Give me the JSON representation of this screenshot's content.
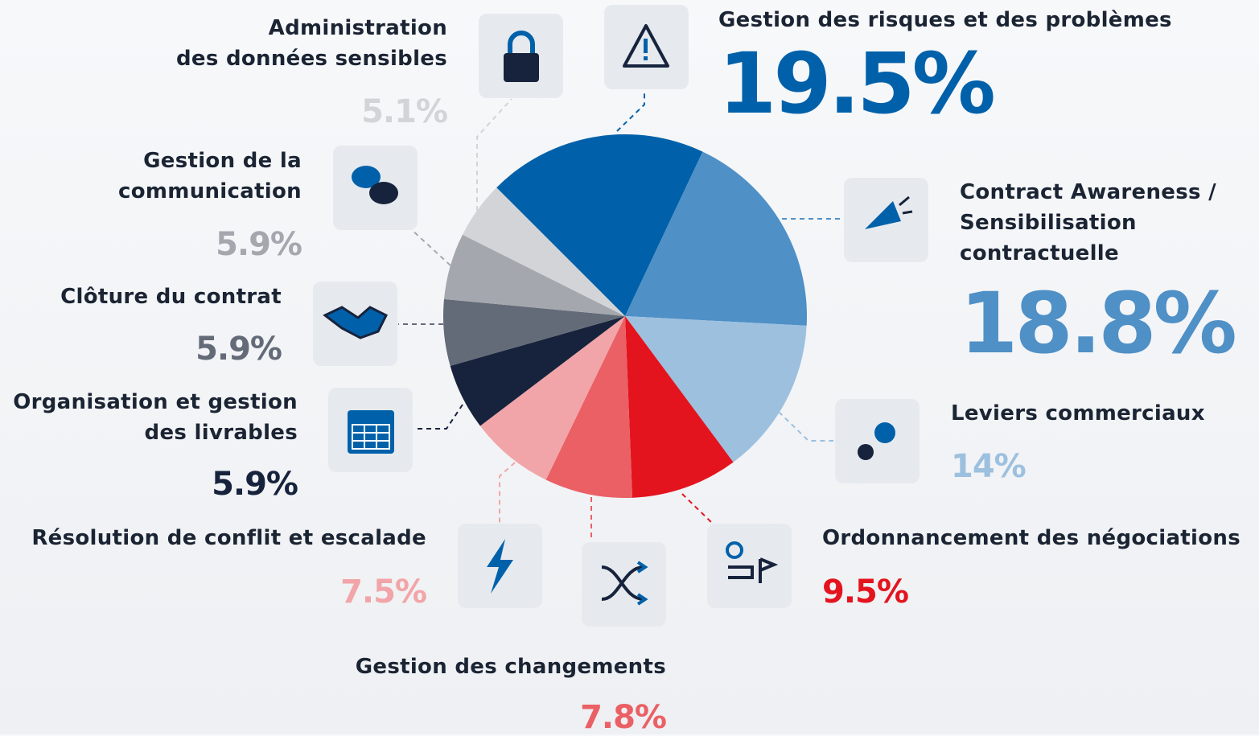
{
  "chart_data": {
    "type": "pie",
    "categories": [
      "Gestion des risques et des problèmes",
      "Contract Awareness /\nSensibilisation\ncontractuelle",
      "Leviers commerciaux",
      "Ordonnancement des négociations",
      "Gestion des changements",
      "Résolution de conflit et escalade",
      "Organisation et gestion\ndes livrables",
      "Clôture du contrat",
      "Gestion de la\ncommunication",
      "Administration\ndes données sensibles"
    ],
    "values": [
      19.5,
      18.8,
      14,
      9.5,
      7.8,
      7.5,
      5.9,
      5.9,
      5.9,
      5.1
    ],
    "value_labels": [
      "19.5%",
      "18.8%",
      "14%",
      "9.5%",
      "7.8%",
      "7.5%",
      "5.9%",
      "5.9%",
      "5.9%",
      "5.1%"
    ],
    "colors": [
      "#0061aa",
      "#4f90c6",
      "#9dc0df",
      "#e3141e",
      "#ea6065",
      "#f2a5a8",
      "#17233d",
      "#646b78",
      "#a4a7ae",
      "#d3d4d7"
    ]
  }
}
